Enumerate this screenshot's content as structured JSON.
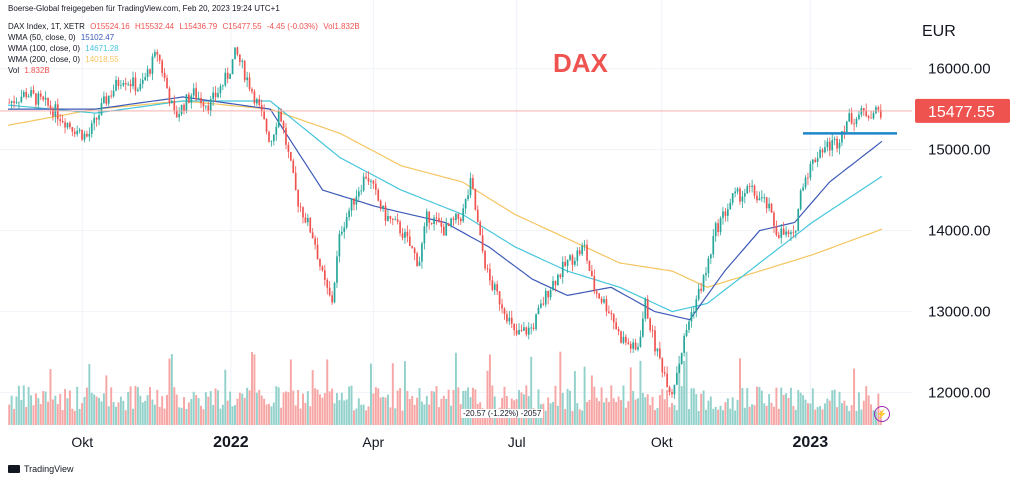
{
  "header": {
    "publisher_line": "Boerse-Global freigegeben für TradingView.com, Feb 20, 2023 19:24 UTC+1",
    "symbol": "DAX Index, 1T, XETR",
    "ohlc": {
      "o": "O15524.16",
      "h": "H15532.44",
      "l": "L15436.79",
      "c": "C15477.55",
      "chg": "-4.45 (-0.03%)",
      "vol": "Vol1.832B"
    },
    "wma": [
      {
        "label": "WMA (50, close, 0)",
        "value": "15102.47",
        "color": "#3d5ab7"
      },
      {
        "label": "WMA (100, close, 0)",
        "value": "14671.28",
        "color": "#46c6dc"
      },
      {
        "label": "WMA (200, close, 0)",
        "value": "14018.55",
        "color": "#f5c561"
      }
    ],
    "vol_label": "Vol",
    "vol_value": "1.832B"
  },
  "brand": "TradingView",
  "delta_label": "-20.57 (-1.22%) -2057",
  "chart_data": {
    "type": "candlestick",
    "title": "DAX",
    "currency": "EUR",
    "y_ticks": [
      "16000.00",
      "15000.00",
      "14000.00",
      "13000.00",
      "12000.00"
    ],
    "y_tick_values": [
      16000,
      15000,
      14000,
      13000,
      12000
    ],
    "ylim": [
      11600,
      16600
    ],
    "last_price": "15477.55",
    "last_value": 15477.55,
    "resistance_level": 15200,
    "x_ticks": [
      {
        "label": "Okt",
        "bold": false,
        "t": 0.085
      },
      {
        "label": "2022",
        "bold": true,
        "t": 0.255
      },
      {
        "label": "Apr",
        "bold": false,
        "t": 0.418
      },
      {
        "label": "Jul",
        "bold": false,
        "t": 0.582
      },
      {
        "label": "Okt",
        "bold": false,
        "t": 0.748
      },
      {
        "label": "2023",
        "bold": true,
        "t": 0.918
      }
    ],
    "price_anchors": [
      [
        0.0,
        15580
      ],
      [
        0.02,
        15700
      ],
      [
        0.05,
        15500
      ],
      [
        0.07,
        15300
      ],
      [
        0.09,
        15150
      ],
      [
        0.11,
        15600
      ],
      [
        0.13,
        15900
      ],
      [
        0.15,
        15750
      ],
      [
        0.17,
        16200
      ],
      [
        0.19,
        15400
      ],
      [
        0.21,
        15700
      ],
      [
        0.23,
        15550
      ],
      [
        0.25,
        15900
      ],
      [
        0.26,
        16200
      ],
      [
        0.28,
        15700
      ],
      [
        0.3,
        15100
      ],
      [
        0.31,
        15500
      ],
      [
        0.33,
        14400
      ],
      [
        0.35,
        13900
      ],
      [
        0.36,
        13400
      ],
      [
        0.37,
        13100
      ],
      [
        0.38,
        14000
      ],
      [
        0.4,
        14500
      ],
      [
        0.41,
        14700
      ],
      [
        0.43,
        14200
      ],
      [
        0.45,
        14000
      ],
      [
        0.47,
        13600
      ],
      [
        0.48,
        14200
      ],
      [
        0.5,
        14000
      ],
      [
        0.52,
        14200
      ],
      [
        0.53,
        14600
      ],
      [
        0.54,
        13900
      ],
      [
        0.55,
        13400
      ],
      [
        0.57,
        13000
      ],
      [
        0.58,
        12700
      ],
      [
        0.6,
        12800
      ],
      [
        0.62,
        13300
      ],
      [
        0.64,
        13600
      ],
      [
        0.66,
        13800
      ],
      [
        0.67,
        13300
      ],
      [
        0.69,
        13000
      ],
      [
        0.7,
        12700
      ],
      [
        0.72,
        12500
      ],
      [
        0.73,
        13100
      ],
      [
        0.74,
        12600
      ],
      [
        0.75,
        12300
      ],
      [
        0.76,
        12000
      ],
      [
        0.78,
        12900
      ],
      [
        0.8,
        13500
      ],
      [
        0.81,
        14000
      ],
      [
        0.83,
        14400
      ],
      [
        0.85,
        14500
      ],
      [
        0.87,
        14300
      ],
      [
        0.88,
        14000
      ],
      [
        0.9,
        13900
      ],
      [
        0.91,
        14600
      ],
      [
        0.93,
        15000
      ],
      [
        0.95,
        15100
      ],
      [
        0.96,
        15350
      ],
      [
        0.98,
        15450
      ],
      [
        1.0,
        15477
      ]
    ],
    "wma_anchors": {
      "wma50": [
        [
          0.0,
          15500
        ],
        [
          0.1,
          15500
        ],
        [
          0.2,
          15650
        ],
        [
          0.3,
          15500
        ],
        [
          0.36,
          14500
        ],
        [
          0.42,
          14300
        ],
        [
          0.5,
          14100
        ],
        [
          0.55,
          13800
        ],
        [
          0.6,
          13400
        ],
        [
          0.64,
          13200
        ],
        [
          0.69,
          13300
        ],
        [
          0.74,
          13000
        ],
        [
          0.78,
          12900
        ],
        [
          0.82,
          13500
        ],
        [
          0.86,
          14000
        ],
        [
          0.9,
          14100
        ],
        [
          0.94,
          14600
        ],
        [
          1.0,
          15102
        ]
      ],
      "wma100": [
        [
          0.0,
          15550
        ],
        [
          0.1,
          15450
        ],
        [
          0.2,
          15600
        ],
        [
          0.3,
          15600
        ],
        [
          0.38,
          14900
        ],
        [
          0.45,
          14500
        ],
        [
          0.52,
          14200
        ],
        [
          0.58,
          13800
        ],
        [
          0.64,
          13500
        ],
        [
          0.7,
          13300
        ],
        [
          0.76,
          13000
        ],
        [
          0.8,
          13100
        ],
        [
          0.86,
          13600
        ],
        [
          0.92,
          14100
        ],
        [
          1.0,
          14671
        ]
      ],
      "wma200": [
        [
          0.0,
          15300
        ],
        [
          0.1,
          15500
        ],
        [
          0.2,
          15600
        ],
        [
          0.3,
          15500
        ],
        [
          0.38,
          15200
        ],
        [
          0.45,
          14800
        ],
        [
          0.52,
          14600
        ],
        [
          0.58,
          14200
        ],
        [
          0.64,
          13900
        ],
        [
          0.7,
          13600
        ],
        [
          0.76,
          13500
        ],
        [
          0.8,
          13300
        ],
        [
          0.86,
          13500
        ],
        [
          0.92,
          13700
        ],
        [
          1.0,
          14018
        ]
      ]
    }
  }
}
